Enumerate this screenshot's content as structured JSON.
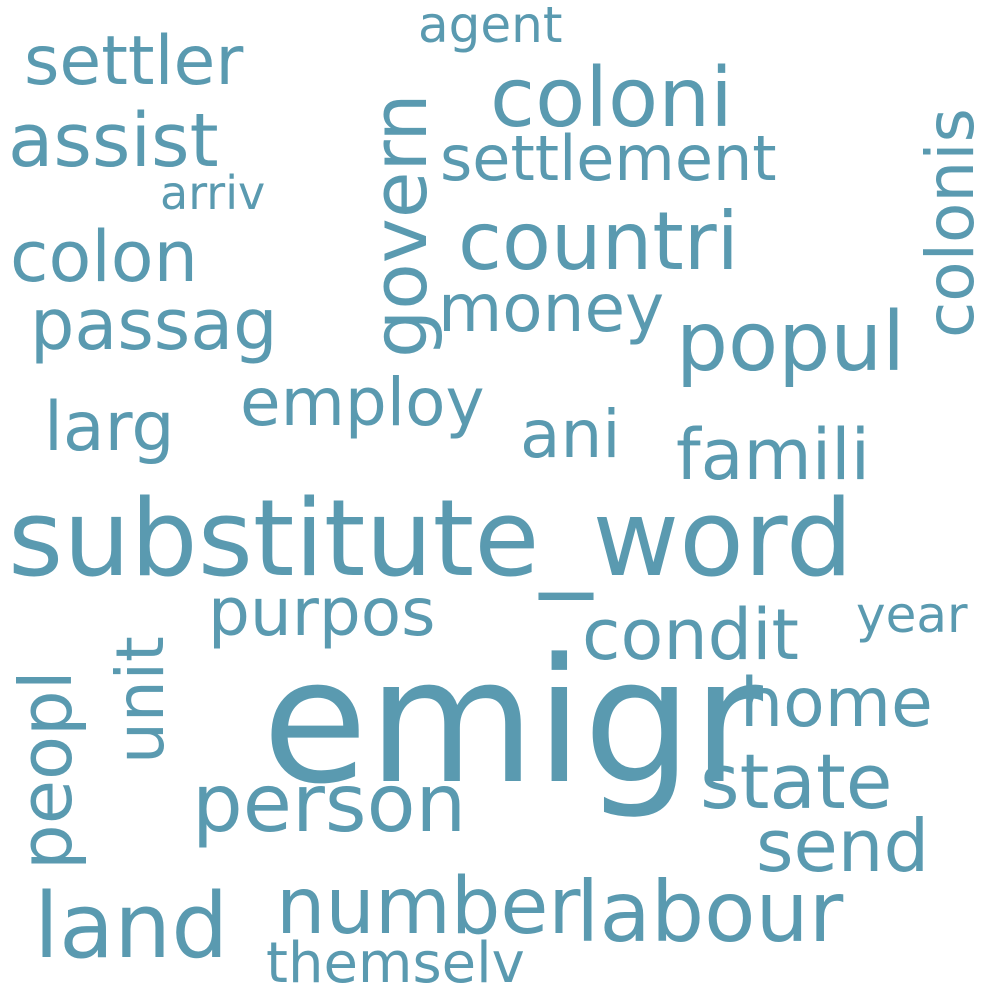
{
  "color": "#5a9ab0",
  "background": "#ffffff",
  "words": [
    {
      "text": "agent"
    },
    {
      "text": "settler"
    },
    {
      "text": "coloni"
    },
    {
      "text": "colonis"
    },
    {
      "text": "assist"
    },
    {
      "text": "govern"
    },
    {
      "text": "settlement"
    },
    {
      "text": "arriv"
    },
    {
      "text": "countri"
    },
    {
      "text": "colon"
    },
    {
      "text": "money"
    },
    {
      "text": "passag"
    },
    {
      "text": "popul"
    },
    {
      "text": "employ"
    },
    {
      "text": "larg"
    },
    {
      "text": "ani"
    },
    {
      "text": "famili"
    },
    {
      "text": "substitute_word"
    },
    {
      "text": "purpos"
    },
    {
      "text": "unit"
    },
    {
      "text": "condit"
    },
    {
      "text": "year"
    },
    {
      "text": "peopl"
    },
    {
      "text": "emigr"
    },
    {
      "text": "home"
    },
    {
      "text": "state"
    },
    {
      "text": "person"
    },
    {
      "text": "send"
    },
    {
      "text": "number"
    },
    {
      "text": "labour"
    },
    {
      "text": "land"
    },
    {
      "text": "themselv"
    }
  ]
}
